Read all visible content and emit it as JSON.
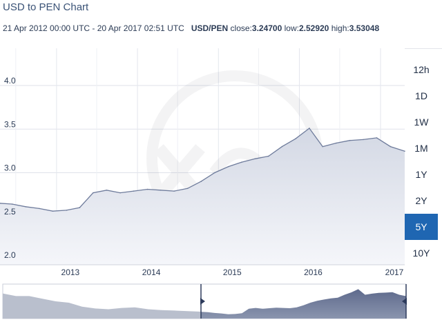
{
  "header": {
    "title": "USD to PEN Chart",
    "date_range": "21 Apr 2012 00:00 UTC - 20 Apr 2017 02:51 UTC",
    "pair": "USD/PEN",
    "close_label": "close:",
    "close_value": "3.24700",
    "low_label": "low:",
    "low_value": "2.52920",
    "high_label": "high:",
    "high_value": "3.53048"
  },
  "ranges": [
    "12h",
    "1D",
    "1W",
    "1M",
    "1Y",
    "2Y",
    "5Y",
    "10Y"
  ],
  "active_range": "5Y",
  "colors": {
    "accent": "#1f66b2",
    "line": "#6e7b9b",
    "navigator": "#6b7695"
  },
  "chart_data": {
    "type": "area",
    "title": "USD to PEN Chart",
    "ylim": [
      2.0,
      4.0
    ],
    "y_ticks": [
      2.0,
      2.5,
      3.0,
      3.5,
      4.0
    ],
    "x_ticks": [
      "2013",
      "2014",
      "2015",
      "2016",
      "2017"
    ],
    "x": [
      "2012-04",
      "2012-06",
      "2012-08",
      "2012-10",
      "2012-12",
      "2013-02",
      "2013-04",
      "2013-06",
      "2013-08",
      "2013-10",
      "2013-12",
      "2014-02",
      "2014-04",
      "2014-06",
      "2014-08",
      "2014-10",
      "2014-12",
      "2015-02",
      "2015-04",
      "2015-06",
      "2015-08",
      "2015-10",
      "2015-12",
      "2016-02",
      "2016-04",
      "2016-06",
      "2016-08",
      "2016-10",
      "2016-12",
      "2017-02",
      "2017-04"
    ],
    "series": [
      {
        "values": [
          2.65,
          2.64,
          2.61,
          2.59,
          2.56,
          2.57,
          2.6,
          2.77,
          2.8,
          2.77,
          2.79,
          2.81,
          2.8,
          2.79,
          2.82,
          2.9,
          3.0,
          3.07,
          3.12,
          3.16,
          3.19,
          3.3,
          3.39,
          3.51,
          3.3,
          3.34,
          3.37,
          3.38,
          3.4,
          3.3,
          3.247
        ]
      }
    ]
  }
}
